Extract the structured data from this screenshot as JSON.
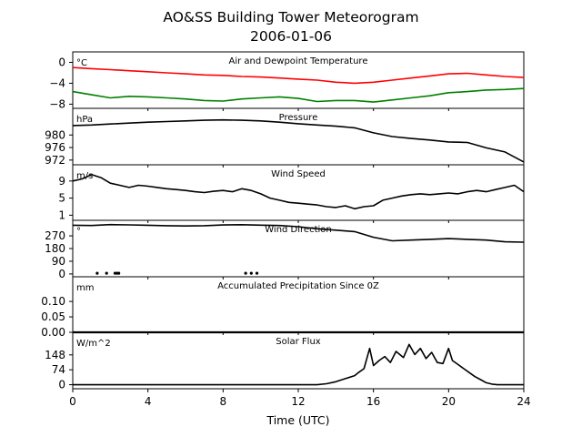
{
  "figure": {
    "title_line1": "AO&SS Building Tower Meteorogram",
    "title_line2": "2006-01-06",
    "xlabel": "Time (UTC)"
  },
  "chart_data": [
    {
      "type": "line",
      "title": "Air and Dewpoint Temperature",
      "unit_label": "°C",
      "ylim": [
        -8.8,
        2.0
      ],
      "yticks": [
        0,
        -4,
        -8
      ],
      "ytick_labels": [
        "0",
        "−4",
        "−8"
      ],
      "x": [
        0,
        1,
        2,
        3,
        4,
        5,
        6,
        7,
        8,
        9,
        10,
        11,
        12,
        13,
        14,
        15,
        16,
        17,
        18,
        19,
        20,
        21,
        22,
        23,
        24
      ],
      "series": [
        {
          "name": "",
          "color": "#ff0000",
          "values": [
            -1.0,
            -1.2,
            -1.4,
            -1.6,
            -1.8,
            -2.0,
            -2.2,
            -2.4,
            -2.5,
            -2.7,
            -2.8,
            -3.0,
            -3.2,
            -3.4,
            -3.8,
            -4.0,
            -3.8,
            -3.4,
            -3.0,
            -2.6,
            -2.2,
            -2.1,
            -2.4,
            -2.7,
            -2.9
          ]
        },
        {
          "name": "",
          "color": "#008000",
          "values": [
            -5.6,
            -6.2,
            -6.8,
            -6.5,
            -6.6,
            -6.8,
            -7.0,
            -7.3,
            -7.4,
            -7.0,
            -6.8,
            -6.6,
            -6.9,
            -7.5,
            -7.3,
            -7.3,
            -7.6,
            -7.2,
            -6.8,
            -6.4,
            -5.8,
            -5.6,
            -5.3,
            -5.2,
            -5.0
          ]
        }
      ]
    },
    {
      "type": "line",
      "title": "Pressure",
      "unit_label": "hPa",
      "ylim": [
        970.5,
        988.5
      ],
      "yticks": [
        980,
        976,
        972
      ],
      "ytick_labels": [
        "980",
        "976",
        "972"
      ],
      "x": [
        0,
        1,
        2,
        3,
        4,
        5,
        6,
        7,
        8,
        9,
        10,
        11,
        12,
        13,
        14,
        15,
        16,
        17,
        18,
        19,
        20,
        21,
        22,
        23,
        24
      ],
      "series": [
        {
          "name": "",
          "color": "#000000",
          "values": [
            983.0,
            983.2,
            983.5,
            983.8,
            984.1,
            984.3,
            984.5,
            984.7,
            984.8,
            984.7,
            984.5,
            984.1,
            983.6,
            983.2,
            982.8,
            982.3,
            980.7,
            979.5,
            978.9,
            978.4,
            977.8,
            977.6,
            975.9,
            974.6,
            971.4
          ]
        }
      ]
    },
    {
      "type": "line",
      "title": "Wind Speed",
      "unit_label": "m/s",
      "ylim": [
        -0.2,
        12.8
      ],
      "yticks": [
        9,
        5,
        1
      ],
      "ytick_labels": [
        "9",
        "5",
        "1"
      ],
      "x": [
        0,
        0.5,
        1,
        1.5,
        2,
        2.5,
        3,
        3.5,
        4,
        4.5,
        5,
        5.5,
        6,
        6.5,
        7,
        7.5,
        8,
        8.5,
        9,
        9.5,
        10,
        10.5,
        11,
        11.5,
        12,
        12.5,
        13,
        13.5,
        14,
        14.5,
        15,
        15.5,
        16,
        16.5,
        17,
        17.5,
        18,
        18.5,
        19,
        19.5,
        20,
        20.5,
        21,
        21.5,
        22,
        22.5,
        23,
        23.5,
        24
      ],
      "series": [
        {
          "name": "",
          "color": "#000000",
          "values": [
            9.0,
            9.5,
            10.5,
            9.8,
            8.5,
            8.0,
            7.5,
            8.0,
            7.8,
            7.5,
            7.2,
            7.0,
            6.8,
            6.5,
            6.3,
            6.6,
            6.8,
            6.5,
            7.2,
            6.8,
            6.0,
            5.0,
            4.5,
            4.0,
            3.8,
            3.6,
            3.4,
            3.0,
            2.8,
            3.2,
            2.5,
            3.0,
            3.2,
            4.5,
            5.0,
            5.5,
            5.8,
            6.0,
            5.8,
            6.0,
            6.2,
            6.0,
            6.5,
            6.8,
            6.5,
            7.0,
            7.5,
            8.0,
            6.5
          ]
        }
      ]
    },
    {
      "type": "line",
      "title": "Wind Direction",
      "unit_label": "°",
      "ylim": [
        -20,
        380
      ],
      "yticks": [
        270,
        180,
        90,
        0
      ],
      "ytick_labels": [
        "270",
        "180",
        "90",
        "0"
      ],
      "x": [
        0,
        1,
        2,
        3,
        4,
        5,
        6,
        7,
        8,
        9,
        10,
        11,
        12,
        13,
        14,
        15,
        16,
        17,
        18,
        19,
        20,
        21,
        22,
        23,
        24
      ],
      "series": [
        {
          "name": "",
          "color": "#000000",
          "values": [
            345,
            343,
            350,
            348,
            345,
            342,
            340,
            342,
            347,
            349,
            346,
            343,
            335,
            320,
            310,
            300,
            260,
            235,
            240,
            245,
            250,
            245,
            240,
            228,
            225
          ]
        }
      ],
      "scatter_points": [
        {
          "x": 1.3,
          "y": 5
        },
        {
          "x": 1.8,
          "y": 5
        },
        {
          "x": 2.25,
          "y": 5
        },
        {
          "x": 2.35,
          "y": 5
        },
        {
          "x": 2.45,
          "y": 5
        },
        {
          "x": 9.2,
          "y": 5
        },
        {
          "x": 9.5,
          "y": 5
        },
        {
          "x": 9.8,
          "y": 5
        }
      ]
    },
    {
      "type": "line",
      "title": "Accumulated Precipitation Since 0Z",
      "unit_label": "mm",
      "ylim": [
        0.0,
        0.18
      ],
      "yticks": [
        0.1,
        0.05,
        0.0
      ],
      "ytick_labels": [
        "0.10",
        "0.05",
        "0.00"
      ],
      "x": [
        0,
        24
      ],
      "series": [
        {
          "name": "",
          "color": "#000000",
          "values": [
            0.0,
            0.0
          ]
        }
      ]
    },
    {
      "type": "line",
      "title": "Solar Flux",
      "unit_label": "W/m^2",
      "ylim": [
        -20,
        260
      ],
      "yticks": [
        148,
        74,
        0
      ],
      "ytick_labels": [
        "148",
        "74",
        "0"
      ],
      "x": [
        0,
        13.0,
        13.5,
        14.0,
        14.5,
        15.0,
        15.2,
        15.5,
        15.8,
        16.0,
        16.3,
        16.6,
        16.9,
        17.2,
        17.6,
        17.9,
        18.2,
        18.5,
        18.8,
        19.1,
        19.4,
        19.7,
        20.0,
        20.2,
        20.5,
        20.8,
        21.1,
        21.4,
        21.7,
        22.0,
        22.3,
        22.6,
        22.9,
        24
      ],
      "series": [
        {
          "name": "",
          "color": "#000000",
          "values": [
            0,
            0,
            5,
            15,
            30,
            45,
            60,
            80,
            180,
            95,
            120,
            140,
            110,
            165,
            135,
            200,
            150,
            180,
            130,
            160,
            110,
            105,
            180,
            120,
            100,
            80,
            60,
            40,
            25,
            10,
            3,
            0,
            0,
            0
          ]
        }
      ]
    }
  ],
  "x_axis": {
    "xlim": [
      0,
      24
    ],
    "ticks": [
      0,
      4,
      8,
      12,
      16,
      20,
      24
    ],
    "tick_labels": [
      "0",
      "4",
      "8",
      "12",
      "16",
      "20",
      "24"
    ]
  }
}
